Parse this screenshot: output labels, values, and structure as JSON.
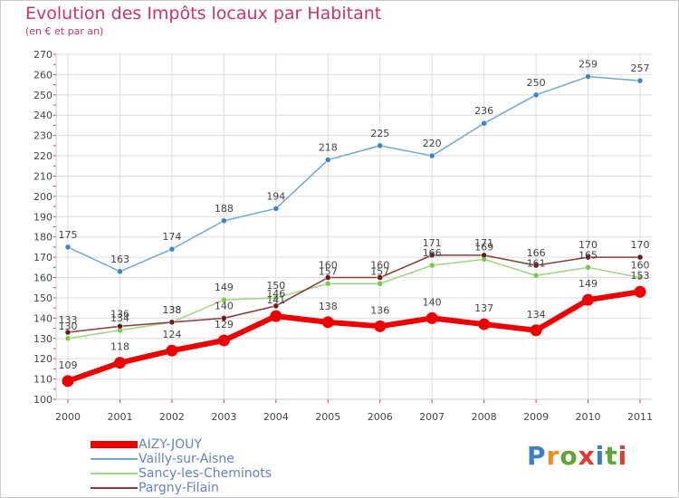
{
  "chart_data": {
    "type": "line",
    "title": "Evolution des Impôts locaux par Habitant",
    "subtitle": "(en € et par an)",
    "xlabel": "",
    "ylabel": "",
    "x": [
      "2000",
      "2001",
      "2002",
      "2003",
      "2004",
      "2005",
      "2006",
      "2007",
      "2008",
      "2009",
      "2010",
      "2011"
    ],
    "ylim": [
      100,
      270
    ],
    "yticks": [
      100,
      110,
      120,
      130,
      140,
      150,
      160,
      170,
      180,
      190,
      200,
      210,
      220,
      230,
      240,
      250,
      260,
      270
    ],
    "grid": true,
    "legend_position": "bottom-left",
    "series": [
      {
        "name": "Vailly-sur-Aisne",
        "color": "#6fa8d8",
        "marker": "#3d85c6",
        "values": [
          175,
          163,
          174,
          188,
          194,
          218,
          225,
          220,
          236,
          250,
          259,
          257
        ]
      },
      {
        "name": "Sancy-les-Cheminots",
        "color": "#9ed67f",
        "marker": "#79c94d",
        "values": [
          130,
          134,
          138,
          149,
          150,
          157,
          157,
          166,
          169,
          161,
          165,
          160
        ]
      },
      {
        "name": "Pargny-Filain",
        "color": "#8b3a3a",
        "marker": "#6b1a1a",
        "values": [
          133,
          136,
          138,
          140,
          146,
          160,
          160,
          171,
          171,
          166,
          170,
          170
        ]
      },
      {
        "name": "AIZY-JOUY",
        "color": "#ee0000",
        "marker": "#ee0000",
        "values": [
          109,
          118,
          124,
          129,
          141,
          138,
          136,
          140,
          137,
          134,
          149,
          153
        ]
      }
    ],
    "legend_order": [
      "AIZY-JOUY",
      "Vailly-sur-Aisne",
      "Sancy-les-Cheminots",
      "Pargny-Filain"
    ]
  },
  "logo": {
    "letters": [
      "P",
      "r",
      "o",
      "x",
      "i",
      "t",
      "i"
    ],
    "colors": [
      "#3d7fc4",
      "#f28c1e",
      "#5aa832",
      "#e23a2f",
      "#3d7fc4",
      "#5aa832",
      "#e23a2f"
    ]
  }
}
